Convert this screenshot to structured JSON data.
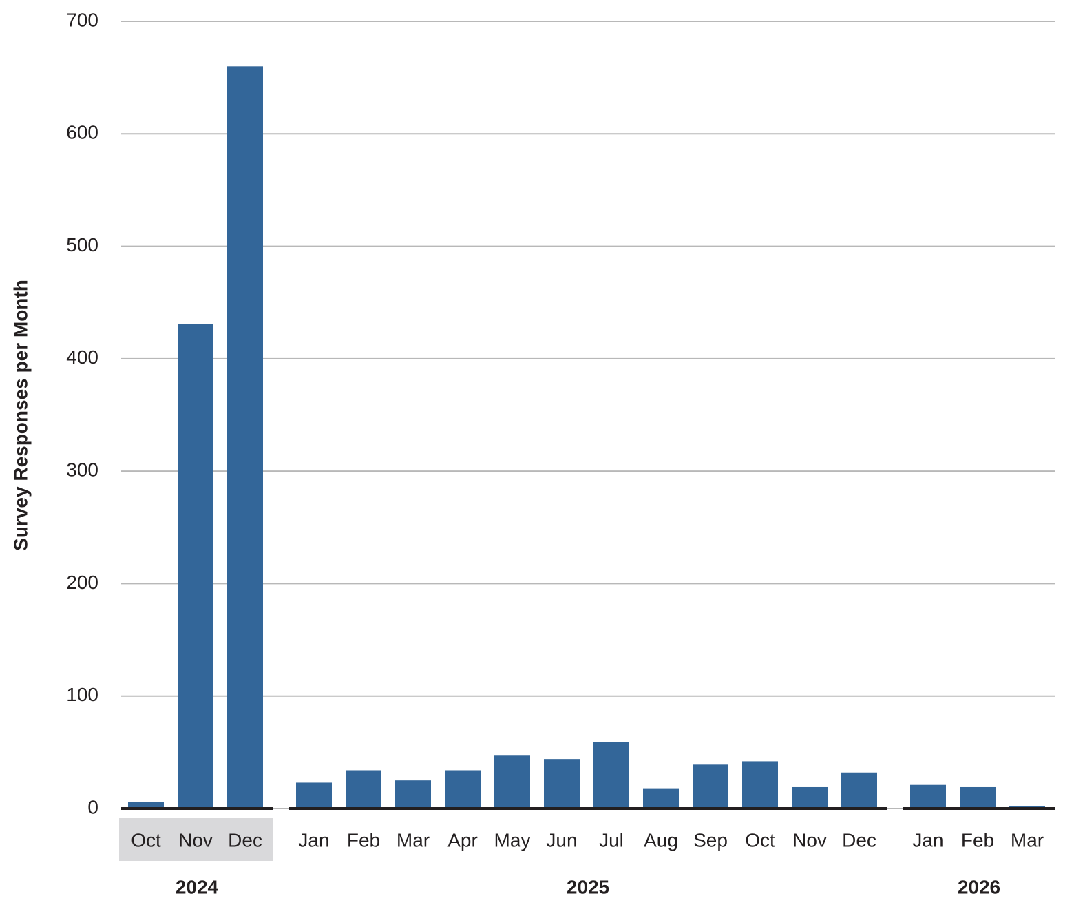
{
  "chart_data": {
    "type": "bar",
    "ylabel": "Survey Responses per Month",
    "color": "#336699",
    "ylim": [
      0,
      700
    ],
    "yticks": [
      0,
      100,
      200,
      300,
      400,
      500,
      600,
      700
    ],
    "grid": true,
    "groups": [
      {
        "label": "2024",
        "highlight": true,
        "categories": [
          "Oct",
          "Nov",
          "Dec"
        ],
        "values": [
          6,
          431,
          660
        ]
      },
      {
        "label": "2025",
        "highlight": false,
        "categories": [
          "Jan",
          "Feb",
          "Mar",
          "Apr",
          "May",
          "Jun",
          "Jul",
          "Aug",
          "Sep",
          "Oct",
          "Nov",
          "Dec"
        ],
        "values": [
          23,
          34,
          25,
          34,
          47,
          44,
          59,
          18,
          39,
          42,
          19,
          32
        ]
      },
      {
        "label": "2026",
        "highlight": false,
        "categories": [
          "Jan",
          "Feb",
          "Mar"
        ],
        "values": [
          21,
          19,
          2
        ]
      }
    ]
  }
}
